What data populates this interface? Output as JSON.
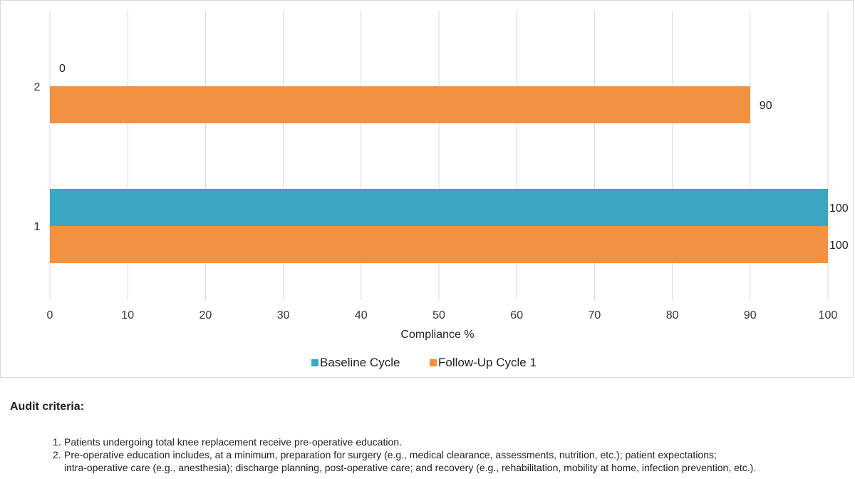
{
  "chart_data": {
    "type": "bar",
    "orientation": "horizontal",
    "categories": [
      "1",
      "2"
    ],
    "series": [
      {
        "name": "Baseline Cycle",
        "values": [
          100,
          0
        ],
        "color": "#3aa6c2"
      },
      {
        "name": "Follow-Up Cycle 1",
        "values": [
          100,
          90
        ],
        "color": "#f39142"
      }
    ],
    "data_labels": {
      "1": {
        "Baseline Cycle": "100",
        "Follow-Up Cycle 1": "100"
      },
      "2": {
        "Baseline Cycle": "0",
        "Follow-Up Cycle 1": "90"
      }
    },
    "xlabel": "Compliance %",
    "xlim": [
      0,
      100
    ],
    "xticks": [
      0,
      10,
      20,
      30,
      40,
      50,
      60,
      70,
      80,
      90,
      100
    ],
    "grid": true,
    "legend": "bottom-center"
  },
  "criteria": {
    "title": "Audit criteria:",
    "items": [
      {
        "number": "1.",
        "lines": [
          "Patients undergoing total knee replacement receive pre-operative education."
        ]
      },
      {
        "number": "2.",
        "lines": [
          "Pre-operative education includes, at a minimum, preparation for surgery (e.g., medical clearance, assessments, nutrition, etc.); patient expectations;",
          "intra-operative care (e.g., anesthesia); discharge planning, post-operative care; and recovery (e.g., rehabilitation, mobility at home, infection prevention, etc.)."
        ]
      }
    ]
  }
}
